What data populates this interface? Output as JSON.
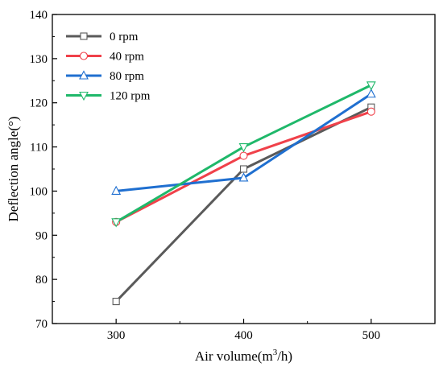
{
  "chart_data": {
    "type": "line",
    "xlabel_main": "Air volume(m",
    "xlabel_sup": "3",
    "xlabel_tail": "/h)",
    "ylabel": "Deflection angle(°)",
    "x": [
      300,
      400,
      500
    ],
    "xlim": [
      250,
      550
    ],
    "ylim": [
      70,
      140
    ],
    "x_ticks": [
      "300",
      "400",
      "500"
    ],
    "y_ticks": [
      "70",
      "80",
      "90",
      "100",
      "110",
      "120",
      "130",
      "140"
    ],
    "grid": false,
    "legend_position": "top-left",
    "series": [
      {
        "name": "0 rpm",
        "values": [
          75,
          105,
          119
        ],
        "color": "#5a5a5a",
        "marker": "square"
      },
      {
        "name": "40 rpm",
        "values": [
          93,
          108,
          118
        ],
        "color": "#f0414a",
        "marker": "circle"
      },
      {
        "name": "80 rpm",
        "values": [
          100,
          103,
          122
        ],
        "color": "#1f6fd0",
        "marker": "triangle-up"
      },
      {
        "name": "120 rpm",
        "values": [
          93,
          110,
          124
        ],
        "color": "#1fb86a",
        "marker": "triangle-down"
      }
    ]
  }
}
